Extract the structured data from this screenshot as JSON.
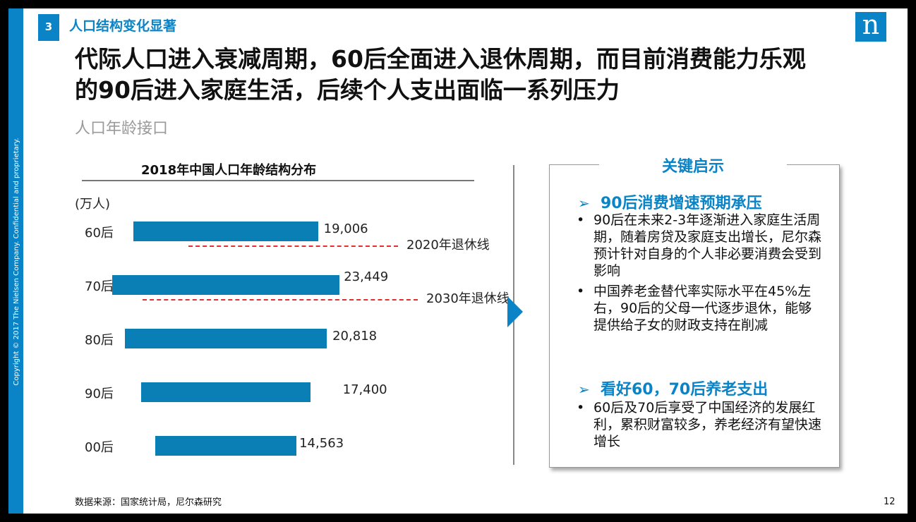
{
  "copyright": "Copyright © 2017 The Nielsen Company. Confidential and proprietary.",
  "section_number": "3",
  "section_title": "人口结构变化显著",
  "logo_text": "n",
  "headline_line1": "代际人口进入衰减周期，60后全面进入退休周期，而目前消费能力乐观",
  "headline_line2": "的90后进入家庭生活，后续个人支出面临一系列压力",
  "subhead": "人口年龄接口",
  "chart_data": {
    "type": "bar",
    "title": "2018年中国人口年龄结构分布",
    "unit": "(万人)",
    "categories": [
      "60后",
      "70后",
      "80后",
      "90后",
      "00后"
    ],
    "values": [
      19006,
      23449,
      20818,
      17400,
      14563
    ],
    "value_labels": [
      "19,006",
      "23,449",
      "20,818",
      "17,400",
      "14,563"
    ],
    "reference_lines": [
      {
        "label": "2020年退休线",
        "category": "60后"
      },
      {
        "label": "2030年退休线",
        "category": "70后"
      }
    ],
    "colors": {
      "bar": "#0a7fb5",
      "reference_line": "#e03030"
    }
  },
  "insights": {
    "title": "关键启示",
    "sections": [
      {
        "heading": "90后消费增速预期承压",
        "bullets": [
          "90后在未来2-3年逐渐进入家庭生活周期，随着房贷及家庭支出增长，尼尔森预计针对自身的个人非必要消费会受到影响",
          "中国养老金替代率实际水平在45%左右，90后的父母一代逐步退休，能够提供给子女的财政支持在削减"
        ]
      },
      {
        "heading": "看好60，70后养老支出",
        "bullets": [
          "60后及70后享受了中国经济的发展红利，累积财富较多，养老经济有望快速增长"
        ]
      }
    ]
  },
  "source": "数据来源：国家统计局，尼尔森研究",
  "page_number": "12",
  "colors": {
    "brand": "#0a84c6"
  }
}
